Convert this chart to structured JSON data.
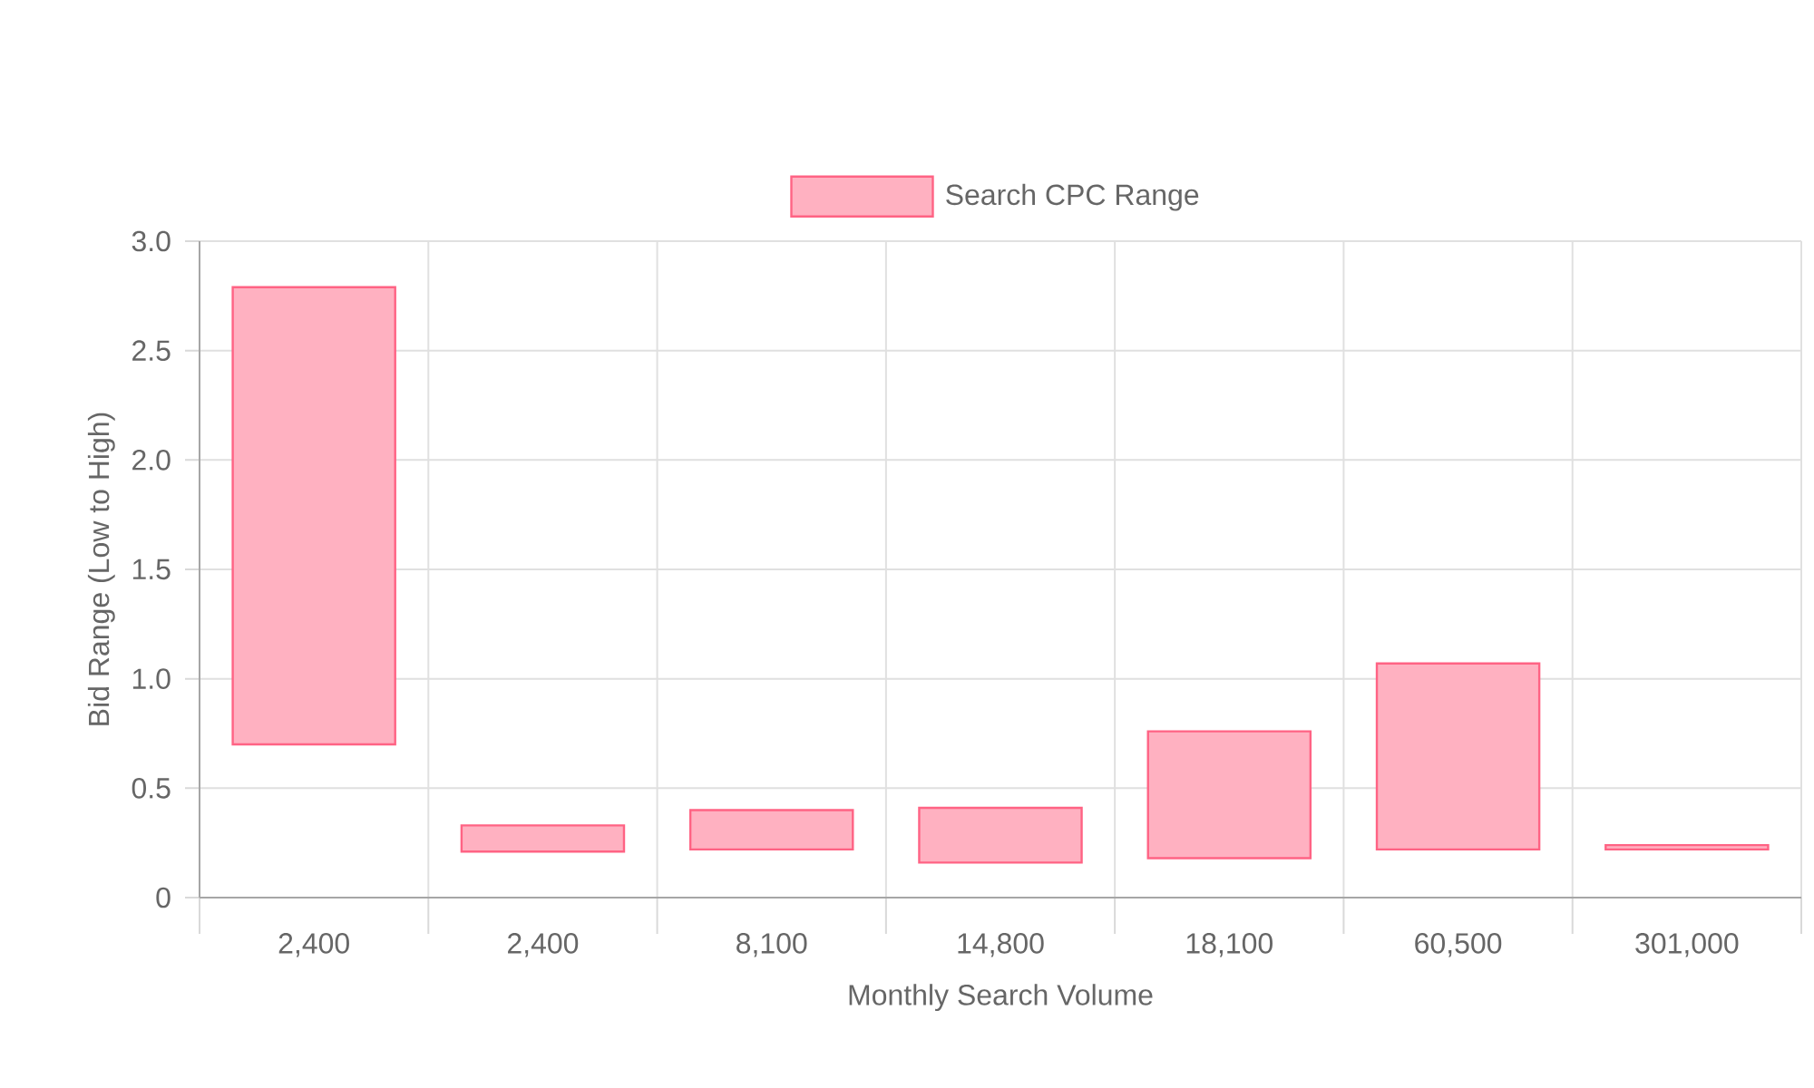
{
  "chart_data": {
    "type": "bar",
    "categories": [
      "2,400",
      "2,400",
      "8,100",
      "14,800",
      "18,100",
      "60,500",
      "301,000"
    ],
    "series": [
      {
        "name": "Search CPC Range",
        "color": "#ff6384",
        "base": [
          0.7,
          0.21,
          0.22,
          0.16,
          0.18,
          0.22,
          0.22
        ],
        "values": [
          2.09,
          0.12,
          0.18,
          0.25,
          0.58,
          0.85,
          0.02
        ]
      }
    ],
    "xlabel": "Monthly Search Volume",
    "ylabel": "Bid Range (Low to High)",
    "ylim": [
      0,
      3
    ],
    "yticks": [
      0,
      0.5,
      {
        "value": 1,
        "label": "1.0"
      },
      1.5,
      {
        "value": 2,
        "label": "2.0"
      },
      2.5,
      {
        "value": 3,
        "label": "3.0"
      }
    ],
    "grid": true,
    "legend": "top"
  }
}
